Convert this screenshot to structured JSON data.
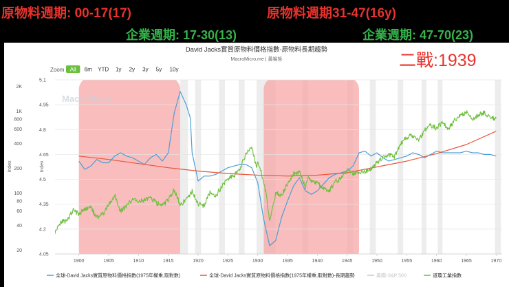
{
  "overlays": {
    "top_left": "原物料週期: 00-17(17)",
    "top_right": "原物料週期31-47(16y)",
    "mid_left": "企業週期: 17-30(13)",
    "mid_right": "企業週期: 47-70(23)",
    "ww2": "二戰:1939"
  },
  "chart": {
    "title": "David Jacks實質原物料價格指數-原物料長期趨勢",
    "subtitle": "MacroMicro.me | 黃裕哲",
    "watermark": "MacroMicro",
    "zoom_label": "Zoom",
    "zoom_buttons": [
      "All",
      "6m",
      "YTD",
      "1y",
      "2y",
      "3y",
      "5y",
      "10y"
    ],
    "zoom_active": "All",
    "left_axis_title": "Index",
    "right_axis_title": "Index"
  },
  "chart_data": {
    "type": "line",
    "x_range": [
      1896,
      1971
    ],
    "x_ticks": [
      "1900",
      "1905",
      "1910",
      "1915",
      "1920",
      "1925",
      "1930",
      "1935",
      "1940",
      "1945",
      "1950",
      "1955",
      "1960",
      "1965",
      "1970"
    ],
    "left_axis": {
      "scale": "log",
      "ticks": [
        "2K",
        "1K",
        "800",
        "600",
        "400",
        "200",
        "100",
        "80",
        "60",
        "40",
        "20"
      ],
      "ylim": [
        18,
        2400
      ]
    },
    "right_axis": {
      "scale": "linear",
      "ticks": [
        "5.1",
        "4.95",
        "4.8",
        "4.65",
        "4.5",
        "4.35",
        "4.2",
        "4.05"
      ],
      "ylim": [
        4.05,
        5.1
      ]
    },
    "shaded_periods": [
      [
        1900,
        1917
      ],
      [
        1931,
        1947
      ]
    ],
    "grey_bands": [
      [
        1917,
        1918.3
      ],
      [
        1919.5,
        1920.5
      ],
      [
        1923.5,
        1924.5
      ],
      [
        1926.8,
        1927.8
      ],
      [
        1929.8,
        1933
      ],
      [
        1937.5,
        1938.5
      ],
      [
        1945,
        1946
      ],
      [
        1948.8,
        1949.8
      ],
      [
        1953.5,
        1954.4
      ],
      [
        1957.5,
        1958.3
      ],
      [
        1960.2,
        1961
      ],
      [
        1969.8,
        1970.8
      ]
    ],
    "series": [
      {
        "name": "全球-David Jacks實質原物料價格指數(1975年權重,取對數)",
        "color": "#4a9fd6",
        "axis": "right",
        "points": [
          [
            1900,
            4.61
          ],
          [
            1901,
            4.56
          ],
          [
            1902,
            4.58
          ],
          [
            1903,
            4.62
          ],
          [
            1904,
            4.6
          ],
          [
            1905,
            4.6
          ],
          [
            1906,
            4.64
          ],
          [
            1907,
            4.66
          ],
          [
            1908,
            4.64
          ],
          [
            1909,
            4.63
          ],
          [
            1910,
            4.61
          ],
          [
            1911,
            4.59
          ],
          [
            1912,
            4.63
          ],
          [
            1913,
            4.65
          ],
          [
            1914,
            4.61
          ],
          [
            1915,
            4.66
          ],
          [
            1916,
            4.9
          ],
          [
            1917,
            5.03
          ],
          [
            1918,
            4.95
          ],
          [
            1918.7,
            4.87
          ],
          [
            1919,
            4.66
          ],
          [
            1920,
            4.49
          ],
          [
            1921,
            4.52
          ],
          [
            1922,
            4.52
          ],
          [
            1923,
            4.53
          ],
          [
            1924,
            4.55
          ],
          [
            1925,
            4.57
          ],
          [
            1926,
            4.58
          ],
          [
            1927,
            4.59
          ],
          [
            1928,
            4.59
          ],
          [
            1929,
            4.57
          ],
          [
            1930,
            4.48
          ],
          [
            1931,
            4.26
          ],
          [
            1932,
            4.1
          ],
          [
            1933,
            4.13
          ],
          [
            1934,
            4.27
          ],
          [
            1935,
            4.37
          ],
          [
            1936,
            4.46
          ],
          [
            1937,
            4.51
          ],
          [
            1938,
            4.43
          ],
          [
            1939,
            4.41
          ],
          [
            1940,
            4.43
          ],
          [
            1941,
            4.47
          ],
          [
            1942,
            4.51
          ],
          [
            1943,
            4.53
          ],
          [
            1944,
            4.54
          ],
          [
            1945,
            4.55
          ],
          [
            1946,
            4.58
          ],
          [
            1947,
            4.66
          ],
          [
            1948,
            4.67
          ],
          [
            1949,
            4.64
          ],
          [
            1950,
            4.66
          ],
          [
            1951,
            4.63
          ],
          [
            1952,
            4.61
          ],
          [
            1953,
            4.62
          ],
          [
            1954,
            4.63
          ],
          [
            1955,
            4.64
          ],
          [
            1956,
            4.66
          ],
          [
            1957,
            4.65
          ],
          [
            1958,
            4.63
          ],
          [
            1959,
            4.65
          ],
          [
            1960,
            4.67
          ],
          [
            1961,
            4.66
          ],
          [
            1962,
            4.66
          ],
          [
            1963,
            4.66
          ],
          [
            1964,
            4.66
          ],
          [
            1965,
            4.67
          ],
          [
            1966,
            4.66
          ],
          [
            1967,
            4.66
          ],
          [
            1968,
            4.65
          ],
          [
            1969,
            4.65
          ],
          [
            1970,
            4.64
          ]
        ]
      },
      {
        "name": "全球-David Jacks實質原物料價格指數(1975年權重,取對數)-長期趨勢",
        "color": "#e8553a",
        "axis": "right",
        "points": [
          [
            1900,
            4.64
          ],
          [
            1905,
            4.62
          ],
          [
            1910,
            4.595
          ],
          [
            1915,
            4.57
          ],
          [
            1920,
            4.55
          ],
          [
            1925,
            4.535
          ],
          [
            1930,
            4.525
          ],
          [
            1935,
            4.52
          ],
          [
            1940,
            4.525
          ],
          [
            1945,
            4.54
          ],
          [
            1950,
            4.575
          ],
          [
            1955,
            4.61
          ],
          [
            1960,
            4.655
          ],
          [
            1965,
            4.71
          ],
          [
            1970,
            4.79
          ]
        ]
      },
      {
        "name": "美國-S&P 500",
        "color": "#c8c8c8",
        "axis": "left",
        "hidden": true,
        "points": []
      },
      {
        "name": "道瓊工業指數",
        "color": "#6cbf3c",
        "axis": "left",
        "points": [
          [
            1896,
            33
          ],
          [
            1897,
            45
          ],
          [
            1898,
            45
          ],
          [
            1899,
            62
          ],
          [
            1900,
            55
          ],
          [
            1901,
            63
          ],
          [
            1902,
            66
          ],
          [
            1903,
            50
          ],
          [
            1904,
            55
          ],
          [
            1905,
            72
          ],
          [
            1906,
            94
          ],
          [
            1907,
            60
          ],
          [
            1908,
            70
          ],
          [
            1909,
            84
          ],
          [
            1910,
            78
          ],
          [
            1911,
            82
          ],
          [
            1912,
            86
          ],
          [
            1913,
            76
          ],
          [
            1914,
            70
          ],
          [
            1915,
            82
          ],
          [
            1916,
            108
          ],
          [
            1917,
            72
          ],
          [
            1918,
            82
          ],
          [
            1919,
            105
          ],
          [
            1920,
            73
          ],
          [
            1921,
            70
          ],
          [
            1922,
            100
          ],
          [
            1923,
            94
          ],
          [
            1924,
            118
          ],
          [
            1925,
            152
          ],
          [
            1926,
            160
          ],
          [
            1927,
            198
          ],
          [
            1928,
            290
          ],
          [
            1929,
            380
          ],
          [
            1929.8,
            200
          ],
          [
            1930,
            240
          ],
          [
            1930.5,
            190
          ],
          [
            1931,
            130
          ],
          [
            1931.5,
            95
          ],
          [
            1932,
            45
          ],
          [
            1932.5,
            65
          ],
          [
            1933,
            98
          ],
          [
            1934,
            95
          ],
          [
            1935,
            130
          ],
          [
            1936,
            175
          ],
          [
            1937,
            180
          ],
          [
            1938,
            120
          ],
          [
            1938.5,
            155
          ],
          [
            1939,
            140
          ],
          [
            1940,
            130
          ],
          [
            1941,
            115
          ],
          [
            1942,
            105
          ],
          [
            1943,
            138
          ],
          [
            1944,
            150
          ],
          [
            1945,
            190
          ],
          [
            1946,
            170
          ],
          [
            1947,
            178
          ],
          [
            1948,
            180
          ],
          [
            1949,
            195
          ],
          [
            1950,
            235
          ],
          [
            1951,
            270
          ],
          [
            1952,
            290
          ],
          [
            1953,
            280
          ],
          [
            1954,
            400
          ],
          [
            1955,
            480
          ],
          [
            1956,
            500
          ],
          [
            1957,
            440
          ],
          [
            1958,
            580
          ],
          [
            1959,
            670
          ],
          [
            1960,
            620
          ],
          [
            1961,
            730
          ],
          [
            1962,
            610
          ],
          [
            1963,
            760
          ],
          [
            1964,
            870
          ],
          [
            1965,
            960
          ],
          [
            1966,
            800
          ],
          [
            1967,
            900
          ],
          [
            1968,
            950
          ],
          [
            1969,
            820
          ],
          [
            1970,
            810
          ]
        ]
      }
    ]
  }
}
